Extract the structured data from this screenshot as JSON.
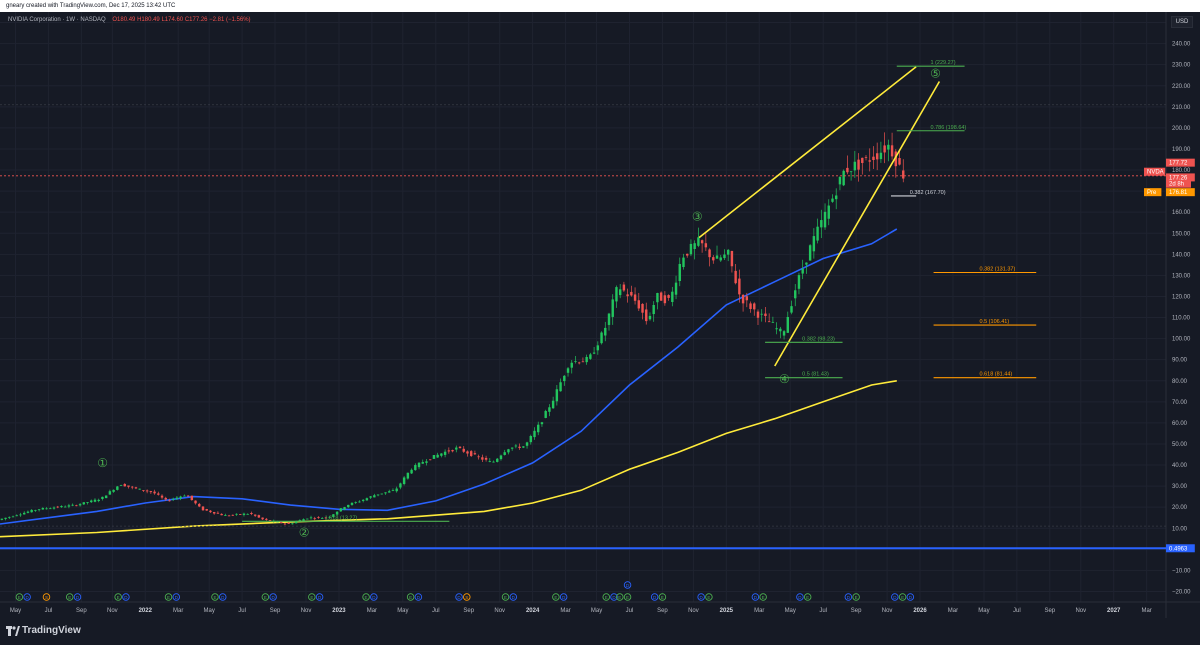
{
  "header": {
    "text": "gneary created with TradingView.com, Dec 17, 2025 13:42 UTC"
  },
  "legend": {
    "symbol": "NVIDIA Corporation · 1W · NASDAQ",
    "open": "O180.49",
    "high": "H180.49",
    "low": "L174.60",
    "close": "C177.26",
    "change": "−2.81 (−1.56%)"
  },
  "currency": "USD",
  "footer": {
    "brand": "TradingView"
  },
  "colors": {
    "background": "#161a25",
    "up": "#26a69a",
    "up_bright": "#22c55e",
    "down": "#ef5350",
    "ma_blue": "#2962ff",
    "ma_yellow": "#ffeb3b",
    "fib_green": "#4caf50",
    "fib_orange": "#ff9800",
    "channel": "#ffeb3b"
  },
  "price_badges": [
    {
      "text": "177.72",
      "color": "#ef5350"
    },
    {
      "text": "NVDA",
      "color": "#ef5350"
    },
    {
      "text": "177.26",
      "color": "#ef5350"
    },
    {
      "text": "2d 8h",
      "color": "#ef5350"
    },
    {
      "text": "Pre",
      "color": "#ff9800"
    },
    {
      "text": "176.81",
      "color": "#ff9800"
    },
    {
      "text": "0.4963",
      "color": "#2962ff"
    }
  ],
  "event_markers": [
    "E",
    "D",
    "S",
    "E",
    "D",
    "E",
    "D",
    "E",
    "D",
    "E",
    "D",
    "E",
    "D",
    "E",
    "D",
    "E",
    "D",
    "E",
    "D",
    "D",
    "S",
    "E",
    "D",
    "E",
    "D",
    "E",
    "D",
    "E",
    "D",
    "E",
    "D",
    "E",
    "D",
    "E",
    "D",
    "E",
    "D",
    "E",
    "D",
    "E",
    "D",
    "E",
    "D"
  ],
  "chart_data": {
    "type": "candlestick",
    "y_axis": {
      "ticks": [
        -20,
        -10,
        0,
        10,
        20,
        30,
        40,
        50,
        60,
        70,
        80,
        90,
        100,
        110,
        120,
        130,
        140,
        150,
        160,
        170,
        180,
        190,
        200,
        210,
        220,
        230,
        240,
        250
      ],
      "tick_labels": [
        "−20.00",
        "−10.00",
        "0.00",
        "10.00",
        "20.00",
        "30.00",
        "40.00",
        "50.00",
        "60.00",
        "70.00",
        "80.00",
        "90.00",
        "100.00",
        "110.00",
        "120.00",
        "130.00",
        "140.00",
        "150.00",
        "160.00",
        "170.00",
        "180.00",
        "190.00",
        "200.00",
        "210.00",
        "220.00",
        "230.00",
        "240.00",
        "250.00"
      ],
      "range": [
        -25,
        255
      ]
    },
    "x_axis": {
      "ticks": [
        {
          "x": 2021.33,
          "label": "May",
          "bold": false
        },
        {
          "x": 2021.5,
          "label": "Jul",
          "bold": false
        },
        {
          "x": 2021.67,
          "label": "Sep",
          "bold": false
        },
        {
          "x": 2021.83,
          "label": "Nov",
          "bold": false
        },
        {
          "x": 2022.0,
          "label": "2022",
          "bold": true
        },
        {
          "x": 2022.17,
          "label": "Mar",
          "bold": false
        },
        {
          "x": 2022.33,
          "label": "May",
          "bold": false
        },
        {
          "x": 2022.5,
          "label": "Jul",
          "bold": false
        },
        {
          "x": 2022.67,
          "label": "Sep",
          "bold": false
        },
        {
          "x": 2022.83,
          "label": "Nov",
          "bold": false
        },
        {
          "x": 2023.0,
          "label": "2023",
          "bold": true
        },
        {
          "x": 2023.17,
          "label": "Mar",
          "bold": false
        },
        {
          "x": 2023.33,
          "label": "May",
          "bold": false
        },
        {
          "x": 2023.5,
          "label": "Jul",
          "bold": false
        },
        {
          "x": 2023.67,
          "label": "Sep",
          "bold": false
        },
        {
          "x": 2023.83,
          "label": "Nov",
          "bold": false
        },
        {
          "x": 2024.0,
          "label": "2024",
          "bold": true
        },
        {
          "x": 2024.17,
          "label": "Mar",
          "bold": false
        },
        {
          "x": 2024.33,
          "label": "May",
          "bold": false
        },
        {
          "x": 2024.5,
          "label": "Jul",
          "bold": false
        },
        {
          "x": 2024.67,
          "label": "Sep",
          "bold": false
        },
        {
          "x": 2024.83,
          "label": "Nov",
          "bold": false
        },
        {
          "x": 2025.0,
          "label": "2025",
          "bold": true
        },
        {
          "x": 2025.17,
          "label": "Mar",
          "bold": false
        },
        {
          "x": 2025.33,
          "label": "May",
          "bold": false
        },
        {
          "x": 2025.5,
          "label": "Jul",
          "bold": false
        },
        {
          "x": 2025.67,
          "label": "Sep",
          "bold": false
        },
        {
          "x": 2025.83,
          "label": "Nov",
          "bold": false
        },
        {
          "x": 2026.0,
          "label": "2026",
          "bold": true
        },
        {
          "x": 2026.17,
          "label": "Mar",
          "bold": false
        },
        {
          "x": 2026.33,
          "label": "May",
          "bold": false
        },
        {
          "x": 2026.5,
          "label": "Jul",
          "bold": false
        },
        {
          "x": 2026.67,
          "label": "Sep",
          "bold": false
        },
        {
          "x": 2026.83,
          "label": "Nov",
          "bold": false
        },
        {
          "x": 2027.0,
          "label": "2027",
          "bold": true
        },
        {
          "x": 2027.17,
          "label": "Mar",
          "bold": false
        }
      ],
      "range": [
        2021.25,
        2027.27
      ]
    },
    "price_anchors": [
      [
        2021.25,
        14
      ],
      [
        2021.45,
        19
      ],
      [
        2021.65,
        21
      ],
      [
        2021.78,
        24
      ],
      [
        2021.88,
        31
      ],
      [
        2021.95,
        29
      ],
      [
        2022.05,
        27
      ],
      [
        2022.12,
        23
      ],
      [
        2022.22,
        26
      ],
      [
        2022.3,
        19
      ],
      [
        2022.42,
        16
      ],
      [
        2022.55,
        17
      ],
      [
        2022.62,
        14
      ],
      [
        2022.75,
        12
      ],
      [
        2022.85,
        15
      ],
      [
        2022.95,
        15
      ],
      [
        2023.05,
        21
      ],
      [
        2023.12,
        23
      ],
      [
        2023.2,
        26
      ],
      [
        2023.3,
        28
      ],
      [
        2023.38,
        38
      ],
      [
        2023.45,
        42
      ],
      [
        2023.55,
        46
      ],
      [
        2023.62,
        48
      ],
      [
        2023.72,
        44
      ],
      [
        2023.8,
        41
      ],
      [
        2023.88,
        48
      ],
      [
        2023.97,
        49
      ],
      [
        2024.05,
        60
      ],
      [
        2024.12,
        72
      ],
      [
        2024.2,
        89
      ],
      [
        2024.3,
        90
      ],
      [
        2024.38,
        104
      ],
      [
        2024.45,
        125
      ],
      [
        2024.55,
        117
      ],
      [
        2024.6,
        108
      ],
      [
        2024.65,
        120
      ],
      [
        2024.72,
        118
      ],
      [
        2024.78,
        139
      ],
      [
        2024.87,
        146
      ],
      [
        2024.95,
        137
      ],
      [
        2025.02,
        140
      ],
      [
        2025.08,
        120
      ],
      [
        2025.17,
        112
      ],
      [
        2025.23,
        108
      ],
      [
        2025.3,
        102
      ],
      [
        2025.37,
        125
      ],
      [
        2025.45,
        145
      ],
      [
        2025.55,
        165
      ],
      [
        2025.62,
        180
      ],
      [
        2025.7,
        183
      ],
      [
        2025.78,
        187
      ],
      [
        2025.85,
        192
      ],
      [
        2025.92,
        178
      ]
    ],
    "series": [
      {
        "name": "",
        "type": "ma",
        "color": "#2962ff",
        "points": [
          [
            2021.25,
            12
          ],
          [
            2021.5,
            15
          ],
          [
            2021.75,
            18
          ],
          [
            2022.0,
            22
          ],
          [
            2022.25,
            25
          ],
          [
            2022.5,
            24
          ],
          [
            2022.75,
            21
          ],
          [
            2023.0,
            19
          ],
          [
            2023.25,
            18.5
          ],
          [
            2023.5,
            23
          ],
          [
            2023.75,
            31
          ],
          [
            2024.0,
            41
          ],
          [
            2024.25,
            56
          ],
          [
            2024.5,
            78
          ],
          [
            2024.75,
            96
          ],
          [
            2025.0,
            116
          ],
          [
            2025.25,
            127
          ],
          [
            2025.5,
            138
          ],
          [
            2025.75,
            145
          ],
          [
            2025.88,
            152
          ]
        ]
      },
      {
        "name": "",
        "type": "ma",
        "color": "#ffeb3b",
        "points": [
          [
            2021.25,
            6
          ],
          [
            2021.75,
            8
          ],
          [
            2022.25,
            11
          ],
          [
            2022.75,
            13
          ],
          [
            2023.25,
            14.5
          ],
          [
            2023.75,
            18
          ],
          [
            2024.0,
            22
          ],
          [
            2024.25,
            28
          ],
          [
            2024.5,
            38
          ],
          [
            2024.75,
            46
          ],
          [
            2025.0,
            55
          ],
          [
            2025.25,
            62
          ],
          [
            2025.5,
            70
          ],
          [
            2025.75,
            78
          ],
          [
            2025.88,
            80
          ]
        ]
      }
    ],
    "annotations": {
      "channel_upper": [
        [
          2024.86,
          148
        ],
        [
          2025.98,
          229
        ]
      ],
      "channel_lower": [
        [
          2025.25,
          87
        ],
        [
          2026.1,
          222
        ]
      ],
      "fib_levels": [
        {
          "x1": 2025.88,
          "x2": 2026.23,
          "y": 229.27,
          "label": "1 (229.27)",
          "color": "#4caf50"
        },
        {
          "x1": 2025.88,
          "x2": 2026.23,
          "y": 198.64,
          "label": "0.786 (198.64)",
          "color": "#4caf50"
        },
        {
          "x1": 2025.2,
          "x2": 2025.6,
          "y": 98.23,
          "label": "0.382 (98.23)",
          "color": "#4caf50"
        },
        {
          "x1": 2025.2,
          "x2": 2025.6,
          "y": 81.43,
          "label": "0.5 (81.43)",
          "color": "#4caf50"
        },
        {
          "x1": 2026.07,
          "x2": 2026.6,
          "y": 131.37,
          "label": "0.382 (131.37)",
          "color": "#ff9800"
        },
        {
          "x1": 2026.07,
          "x2": 2026.6,
          "y": 106.41,
          "label": "0.5 (106.41)",
          "color": "#ff9800"
        },
        {
          "x1": 2026.07,
          "x2": 2026.6,
          "y": 81.44,
          "label": "0.618 (81.44)",
          "color": "#ff9800"
        },
        {
          "x1": 2025.85,
          "x2": 2025.98,
          "y": 167.7,
          "label": "0.382 (167.70)",
          "color": "#d1d4dc"
        },
        {
          "x1": 2022.5,
          "x2": 2023.57,
          "y": 13.27,
          "label": "1.618 (13.27)",
          "color": "#4caf50"
        }
      ],
      "wave_labels": [
        {
          "label": "①",
          "x": 2021.78,
          "y": 39
        },
        {
          "label": "②",
          "x": 2022.82,
          "y": 6
        },
        {
          "label": "③",
          "x": 2024.85,
          "y": 156
        },
        {
          "label": "④",
          "x": 2025.3,
          "y": 79
        },
        {
          "label": "⑤",
          "x": 2026.08,
          "y": 224
        }
      ],
      "current_price": 177.26,
      "reference_line": 0.4963
    }
  }
}
